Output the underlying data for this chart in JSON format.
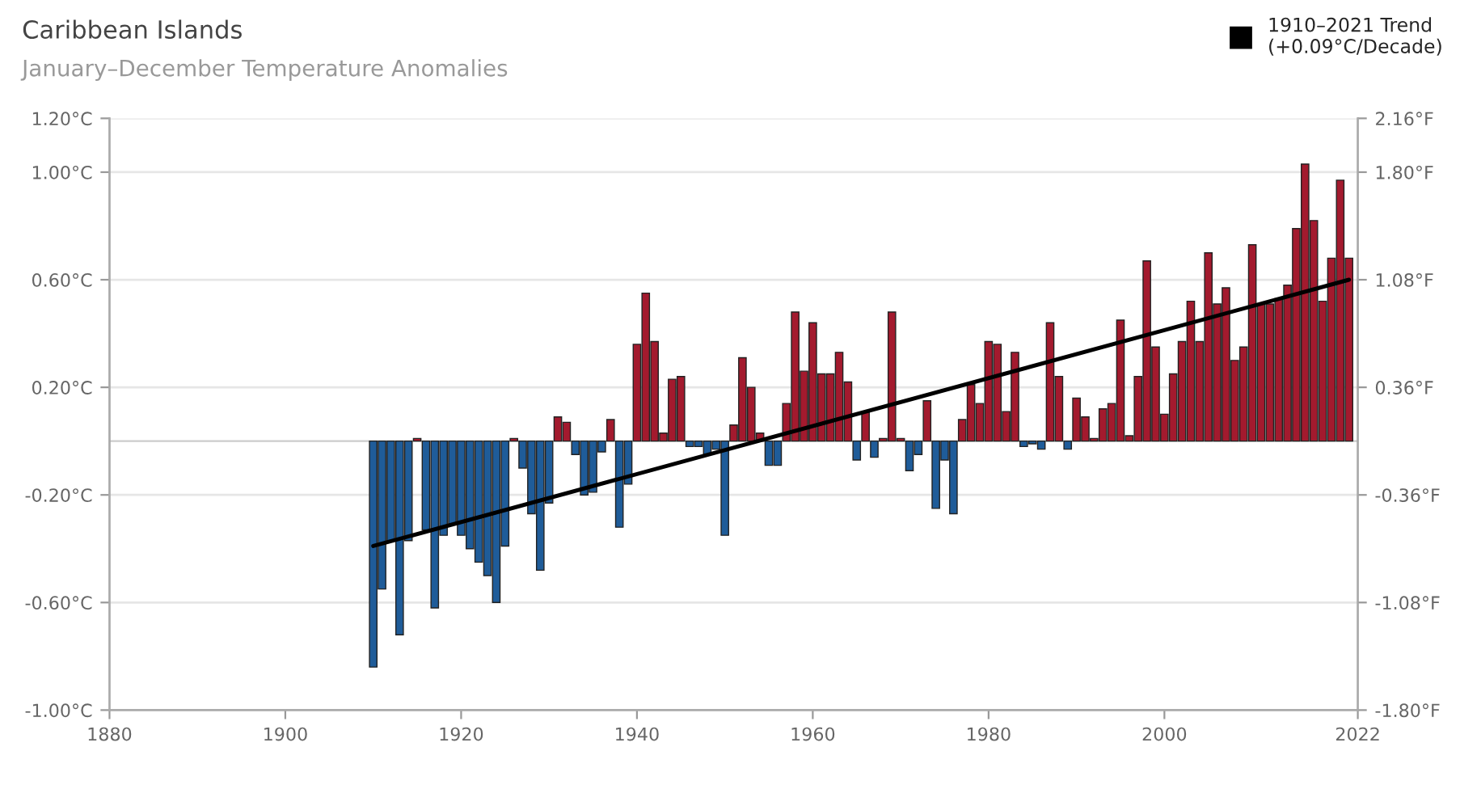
{
  "chart_data": {
    "type": "bar",
    "title": "Caribbean Islands",
    "subtitle": "January–December Temperature Anomalies",
    "x": [
      1910,
      1911,
      1912,
      1913,
      1914,
      1915,
      1916,
      1917,
      1918,
      1919,
      1920,
      1921,
      1922,
      1923,
      1924,
      1925,
      1926,
      1927,
      1928,
      1929,
      1930,
      1931,
      1932,
      1933,
      1934,
      1935,
      1936,
      1937,
      1938,
      1939,
      1940,
      1941,
      1942,
      1943,
      1944,
      1945,
      1946,
      1947,
      1948,
      1949,
      1950,
      1951,
      1952,
      1953,
      1954,
      1955,
      1956,
      1957,
      1958,
      1959,
      1960,
      1961,
      1962,
      1963,
      1964,
      1965,
      1966,
      1967,
      1968,
      1969,
      1970,
      1971,
      1972,
      1973,
      1974,
      1975,
      1976,
      1977,
      1978,
      1979,
      1980,
      1981,
      1982,
      1983,
      1984,
      1985,
      1986,
      1987,
      1988,
      1989,
      1990,
      1991,
      1992,
      1993,
      1994,
      1995,
      1996,
      1997,
      1998,
      1999,
      2000,
      2001,
      2002,
      2003,
      2004,
      2005,
      2006,
      2007,
      2008,
      2009,
      2010,
      2011,
      2012,
      2013,
      2014,
      2015,
      2016,
      2017,
      2018,
      2019,
      2020,
      2021
    ],
    "series": [
      {
        "values": [
          -0.84,
          -0.55,
          -0.37,
          -0.72,
          -0.37,
          0.01,
          -0.33,
          -0.62,
          -0.35,
          -0.31,
          -0.35,
          -0.4,
          -0.45,
          -0.5,
          -0.6,
          -0.39,
          0.01,
          -0.1,
          -0.27,
          -0.48,
          -0.23,
          0.09,
          0.07,
          -0.05,
          -0.2,
          -0.19,
          -0.04,
          0.08,
          -0.32,
          -0.16,
          0.36,
          0.55,
          0.37,
          0.03,
          0.23,
          0.24,
          -0.02,
          -0.02,
          -0.05,
          -0.03,
          -0.35,
          0.06,
          0.31,
          0.2,
          0.03,
          -0.09,
          -0.09,
          0.14,
          0.48,
          0.26,
          0.44,
          0.25,
          0.25,
          0.33,
          0.22,
          -0.07,
          0.11,
          -0.06,
          0.01,
          0.48,
          0.01,
          -0.11,
          -0.05,
          0.15,
          -0.25,
          -0.07,
          -0.27,
          0.08,
          0.21,
          0.14,
          0.37,
          0.36,
          0.11,
          0.33,
          -0.02,
          -0.01,
          -0.03,
          0.44,
          0.24,
          -0.03,
          0.16,
          0.09,
          0.01,
          0.12,
          0.14,
          0.45,
          0.02,
          0.24,
          0.67,
          0.35,
          0.1,
          0.25,
          0.37,
          0.52,
          0.37,
          0.7,
          0.51,
          0.57,
          0.3,
          0.35,
          0.73,
          0.51,
          0.51,
          0.53,
          0.58,
          0.79,
          1.03,
          0.82,
          0.52,
          0.68,
          0.97,
          0.68
        ],
        "colors": [
          "#1f5c99",
          "#1f5c99",
          "#1f5c99",
          "#1f5c99",
          "#1f5c99",
          "#a31a2e",
          "#1f5c99",
          "#1f5c99",
          "#1f5c99",
          "#1f5c99",
          "#1f5c99",
          "#1f5c99",
          "#1f5c99",
          "#1f5c99",
          "#1f5c99",
          "#1f5c99",
          "#a31a2e",
          "#1f5c99",
          "#1f5c99",
          "#1f5c99",
          "#1f5c99",
          "#a31a2e",
          "#a31a2e",
          "#1f5c99",
          "#1f5c99",
          "#1f5c99",
          "#1f5c99",
          "#a31a2e",
          "#1f5c99",
          "#1f5c99",
          "#a31a2e",
          "#a31a2e",
          "#a31a2e",
          "#a31a2e",
          "#a31a2e",
          "#a31a2e",
          "#1f5c99",
          "#1f5c99",
          "#1f5c99",
          "#1f5c99",
          "#1f5c99",
          "#a31a2e",
          "#a31a2e",
          "#a31a2e",
          "#a31a2e",
          "#1f5c99",
          "#1f5c99",
          "#a31a2e",
          "#a31a2e",
          "#a31a2e",
          "#a31a2e",
          "#a31a2e",
          "#a31a2e",
          "#a31a2e",
          "#a31a2e",
          "#1f5c99",
          "#a31a2e",
          "#1f5c99",
          "#a31a2e",
          "#a31a2e",
          "#a31a2e",
          "#1f5c99",
          "#1f5c99",
          "#a31a2e",
          "#1f5c99",
          "#1f5c99",
          "#1f5c99",
          "#a31a2e",
          "#a31a2e",
          "#a31a2e",
          "#a31a2e",
          "#a31a2e",
          "#a31a2e",
          "#a31a2e",
          "#1f5c99",
          "#1f5c99",
          "#1f5c99",
          "#a31a2e",
          "#a31a2e",
          "#1f5c99",
          "#a31a2e",
          "#a31a2e",
          "#a31a2e",
          "#a31a2e",
          "#a31a2e",
          "#a31a2e",
          "#a31a2e",
          "#a31a2e",
          "#a31a2e",
          "#a31a2e",
          "#a31a2e",
          "#a31a2e",
          "#a31a2e",
          "#a31a2e",
          "#a31a2e",
          "#a31a2e",
          "#a31a2e",
          "#a31a2e",
          "#a31a2e",
          "#a31a2e",
          "#a31a2e",
          "#a31a2e",
          "#a31a2e",
          "#a31a2e",
          "#a31a2e",
          "#a31a2e",
          "#a31a2e",
          "#a31a2e",
          "#a31a2e",
          "#a31a2e",
          "#a31a2e",
          "#a31a2e"
        ]
      },
      {
        "type": "line",
        "name": "1910–2021 Trend\n(+0.09°C/Decade)",
        "color": "#000000",
        "x": [
          1910,
          2021
        ],
        "values": [
          -0.39,
          0.6
        ]
      }
    ],
    "xlim": [
      1880,
      2022
    ],
    "xticks": [
      1880,
      1900,
      1920,
      1940,
      1960,
      1980,
      2000,
      2022
    ],
    "ylim": [
      -1.0,
      1.2
    ],
    "yticks": [
      {
        "value": -1.0,
        "label": "-1.00°C"
      },
      {
        "value": -0.6,
        "label": "-0.60°C"
      },
      {
        "value": -0.2,
        "label": "-0.20°C"
      },
      {
        "value": 0.2,
        "label": "0.20°C"
      },
      {
        "value": 0.6,
        "label": "0.60°C"
      },
      {
        "value": 1.0,
        "label": "1.00°C"
      },
      {
        "value": 1.2,
        "label": "1.20°C"
      }
    ],
    "y2lim": [
      -1.8,
      2.16
    ],
    "y2ticks": [
      {
        "value": -1.8,
        "label": "-1.80°F"
      },
      {
        "value": -1.08,
        "label": "-1.08°F"
      },
      {
        "value": -0.36,
        "label": "-0.36°F"
      },
      {
        "value": 0.36,
        "label": "0.36°F"
      },
      {
        "value": 1.08,
        "label": "1.08°F"
      },
      {
        "value": 1.8,
        "label": "1.80°F"
      },
      {
        "value": 2.16,
        "label": "2.16°F"
      }
    ],
    "grid": "y",
    "legend": "top right"
  }
}
